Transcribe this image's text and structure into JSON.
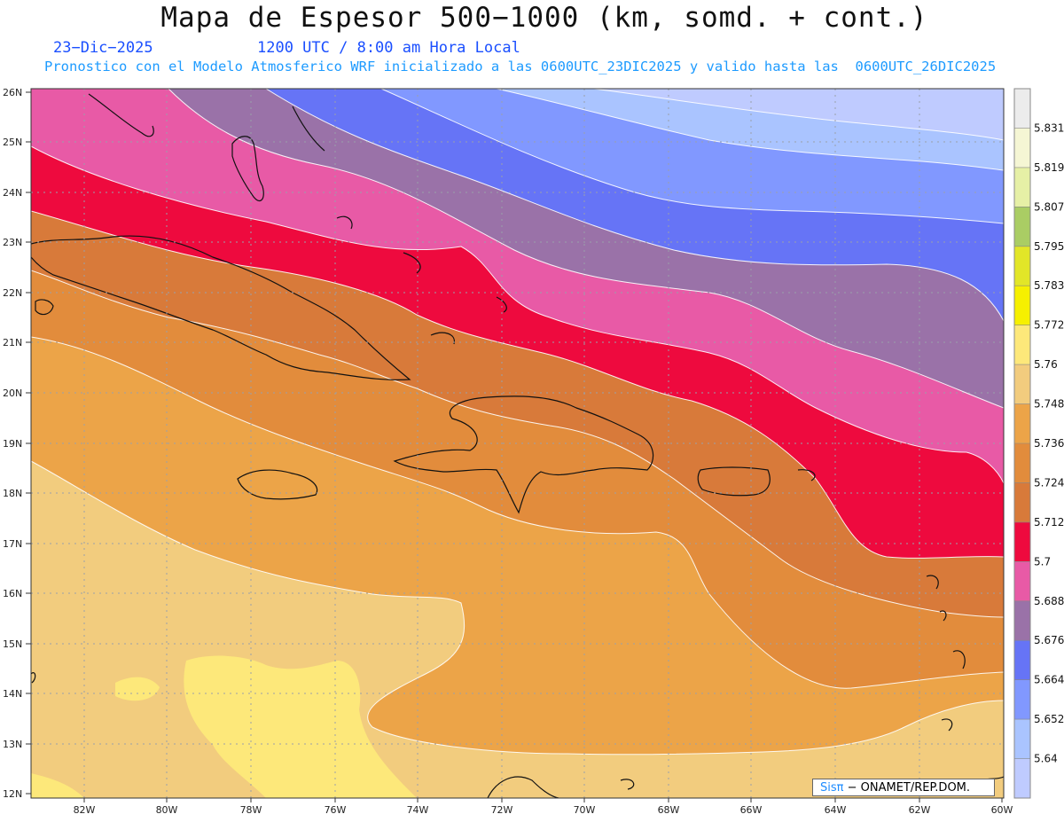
{
  "header": {
    "title": "Mapa de Espesor 500−1000 (km, somd. + cont.)",
    "date": "23−Dic−2025",
    "time": "1200 UTC / 8:00 am Hora Local",
    "forecast_info": "Pronostico con el Modelo Atmosferico WRF inicializado a las 0600UTC_23DIC2025 y valido hasta las  0600UTC_26DIC2025"
  },
  "map": {
    "lat_labels": [
      "26N",
      "25N",
      "24N",
      "23N",
      "22N",
      "21N",
      "20N",
      "19N",
      "18N",
      "17N",
      "16N",
      "15N",
      "14N",
      "13N",
      "12N"
    ],
    "lon_labels": [
      "82W",
      "80W",
      "78W",
      "76W",
      "74W",
      "72W",
      "70W",
      "68W",
      "66W",
      "64W",
      "62W",
      "60W"
    ],
    "grid": "dotted"
  },
  "colorbar": {
    "labels": [
      "5.831",
      "5.819",
      "5.807",
      "5.795",
      "5.783",
      "5.772",
      "5.76",
      "5.748",
      "5.736",
      "5.724",
      "5.712",
      "5.7",
      "5.688",
      "5.676",
      "5.664",
      "5.652",
      "5.64"
    ],
    "colors": [
      "#ececec",
      "#f5f6d4",
      "#e6f0a6",
      "#aacd64",
      "#e2e628",
      "#f6f000",
      "#fde87a",
      "#f2cc7e",
      "#eca448",
      "#e28c3c",
      "#d87a3a",
      "#ee0a3e",
      "#e85aa6",
      "#9a72a8",
      "#6674f6",
      "#8198ff",
      "#aac4ff",
      "#bfcbff"
    ]
  },
  "credit": {
    "brand": "Sisπ",
    "text": "− ONAMET/REP.DOM."
  }
}
